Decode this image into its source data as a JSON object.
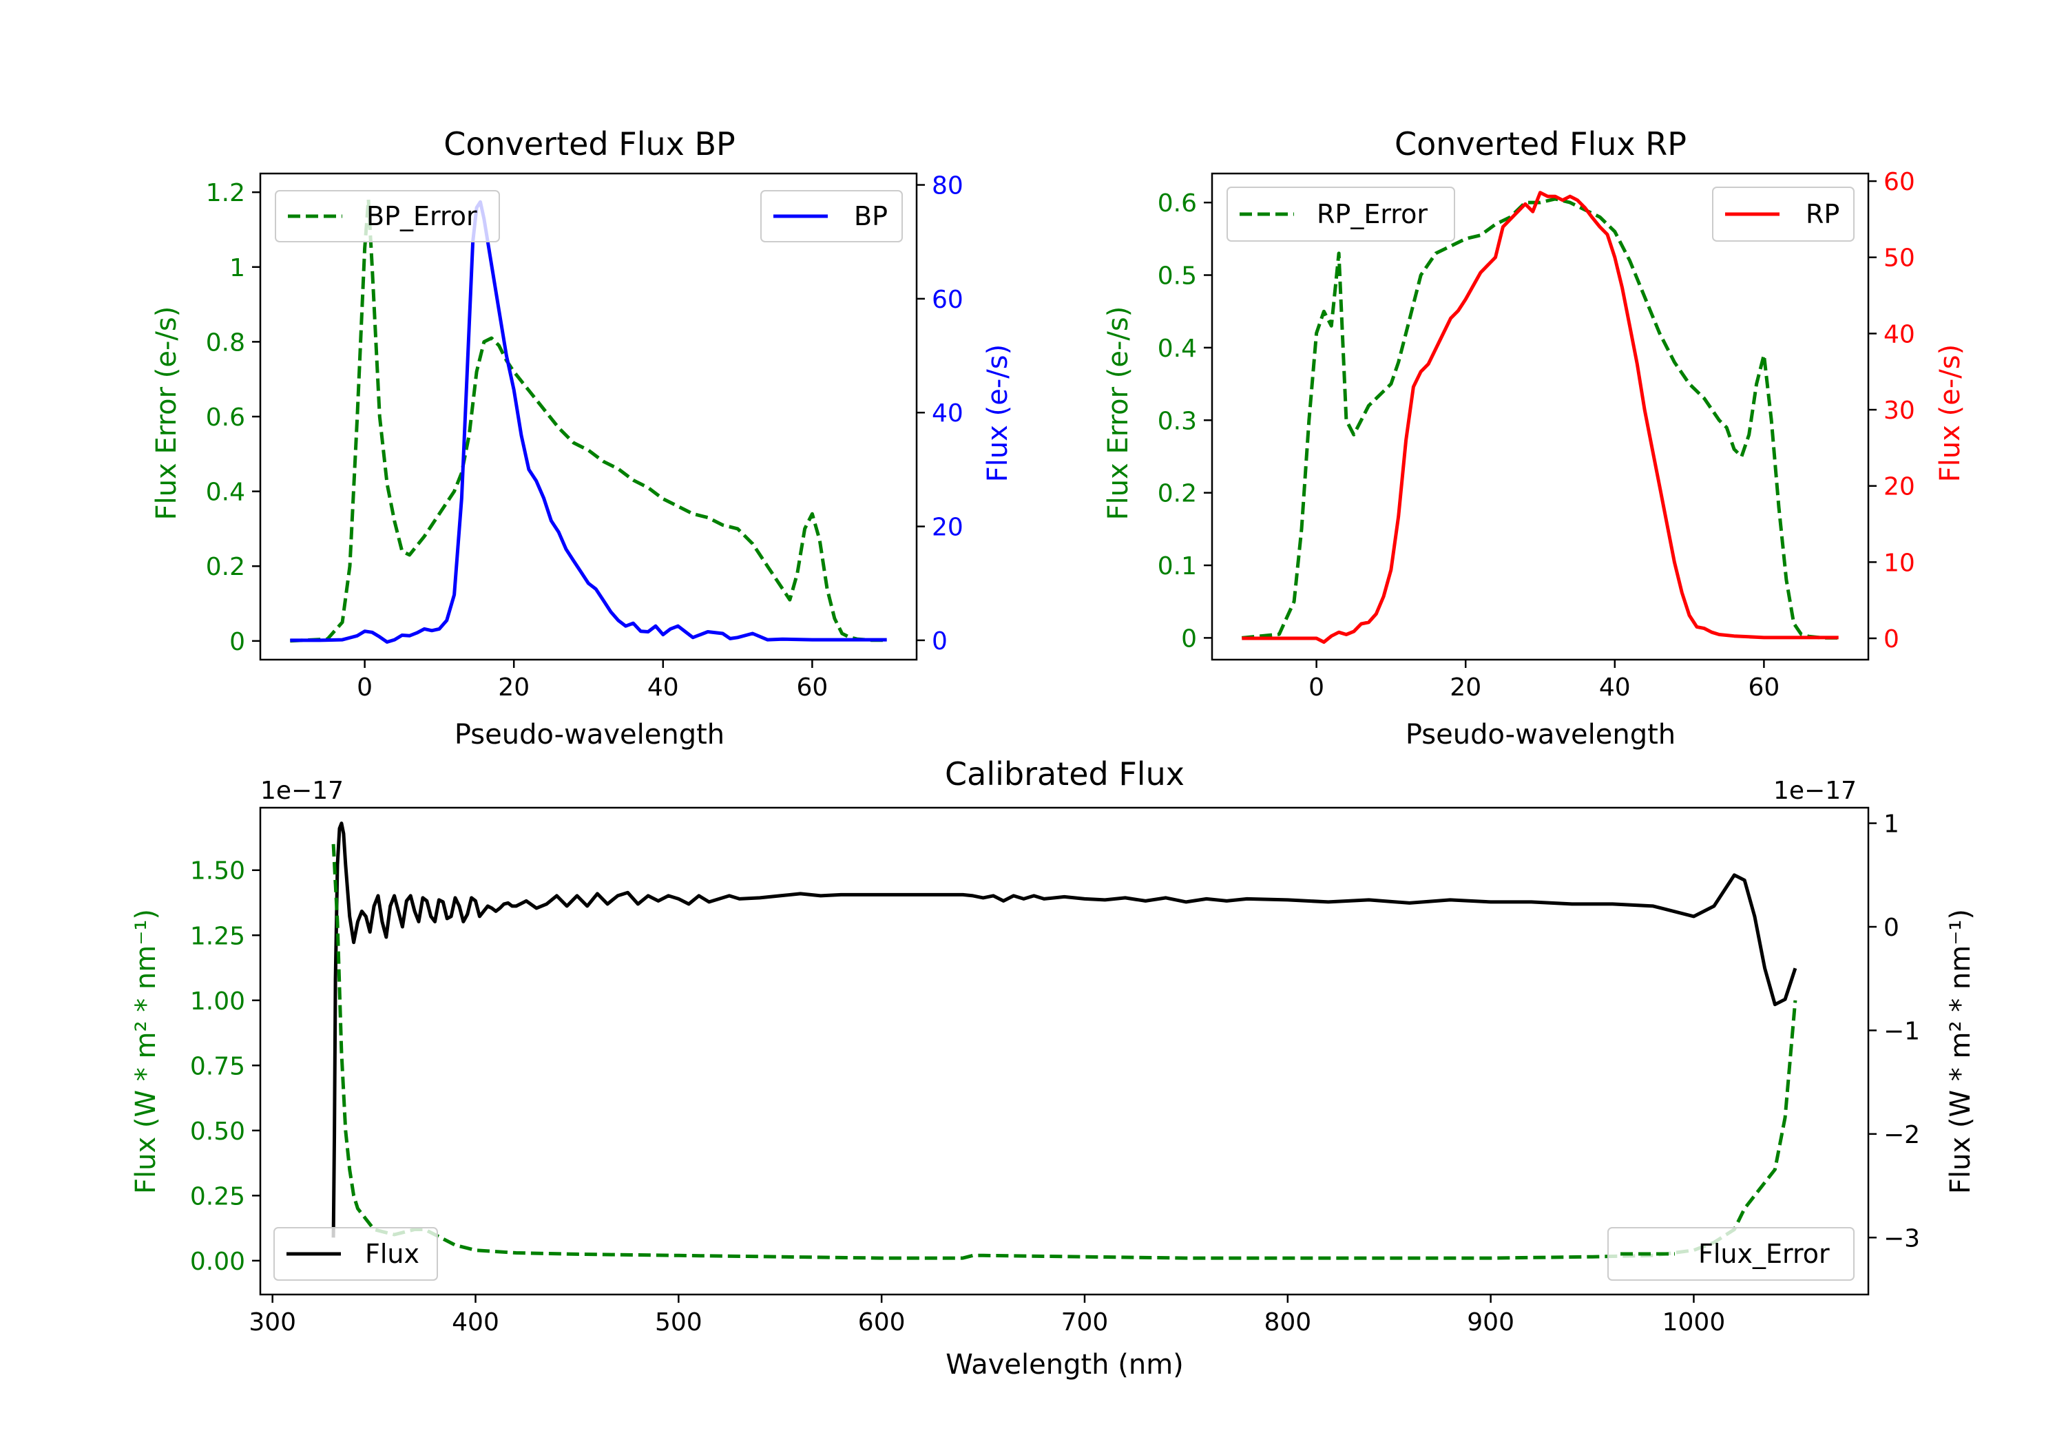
{
  "figure": {
    "title": ""
  },
  "chart_data": [
    {
      "id": "bp",
      "type": "line",
      "title": "Converted Flux BP",
      "xlabel": "Pseudo-wavelength",
      "ylabel_left": "Flux Error (e-/s)",
      "ylabel_right": "Flux (e-/s)",
      "xlim": [
        -14,
        74
      ],
      "ylim_left": [
        -0.05,
        1.25
      ],
      "ylim_right": [
        -3.4,
        82
      ],
      "xticks": [
        0,
        20,
        40,
        60
      ],
      "yticks_left": [
        0.0,
        0.2,
        0.4,
        0.6,
        0.8,
        1.0,
        1.2
      ],
      "yticks_right": [
        0,
        20,
        40,
        60,
        80
      ],
      "left_tick_color": "#008000",
      "right_tick_color": "#0000ff",
      "legend_left": "top-left",
      "legend_right": "top-right",
      "series": [
        {
          "name": "BP_Error",
          "axis": "left",
          "color": "#008000",
          "dash": true,
          "x": [
            -10,
            -5,
            -3,
            -2,
            -1,
            0,
            0.5,
            1,
            2,
            3,
            4,
            5,
            6,
            8,
            10,
            12,
            13,
            14,
            15,
            16,
            17,
            18,
            19,
            20,
            22,
            24,
            26,
            28,
            30,
            32,
            34,
            36,
            38,
            40,
            42,
            44,
            46,
            48,
            50,
            52,
            54,
            56,
            57,
            58,
            59,
            60,
            61,
            62,
            63,
            64,
            65,
            66,
            68,
            70
          ],
          "y": [
            0,
            0.005,
            0.05,
            0.2,
            0.6,
            1.05,
            1.18,
            1.0,
            0.6,
            0.42,
            0.32,
            0.24,
            0.23,
            0.28,
            0.34,
            0.4,
            0.45,
            0.55,
            0.72,
            0.8,
            0.81,
            0.79,
            0.75,
            0.72,
            0.67,
            0.62,
            0.57,
            0.53,
            0.51,
            0.48,
            0.46,
            0.43,
            0.41,
            0.38,
            0.36,
            0.34,
            0.33,
            0.31,
            0.3,
            0.26,
            0.2,
            0.14,
            0.11,
            0.18,
            0.3,
            0.34,
            0.27,
            0.14,
            0.06,
            0.02,
            0.01,
            0.005,
            0.002,
            0.002
          ]
        },
        {
          "name": "BP",
          "axis": "right",
          "color": "#0000ff",
          "dash": false,
          "x": [
            -10,
            -6,
            -3,
            -1,
            0,
            1,
            2,
            3,
            4,
            5,
            6,
            7,
            8,
            9,
            10,
            11,
            12,
            13,
            14,
            14.5,
            15,
            15.5,
            16,
            16.5,
            17,
            18,
            19,
            20,
            21,
            22,
            23,
            24,
            25,
            26,
            27,
            28,
            29,
            30,
            31,
            32,
            33,
            34,
            35,
            36,
            37,
            38,
            39,
            40,
            41,
            42,
            43,
            44,
            46,
            48,
            49,
            50,
            52,
            54,
            56,
            60,
            65,
            70
          ],
          "y": [
            0,
            0,
            0.1,
            0.8,
            1.6,
            1.4,
            0.6,
            -0.3,
            0.1,
            0.9,
            0.8,
            1.3,
            2,
            1.7,
            2,
            3.5,
            8,
            25,
            55,
            70,
            76,
            77,
            74,
            70,
            66,
            58,
            50,
            44,
            36,
            30,
            28,
            25,
            21,
            19,
            16,
            14,
            12,
            10,
            9,
            7,
            5,
            3.5,
            2.5,
            3,
            1.6,
            1.5,
            2.5,
            1,
            2,
            2.5,
            1.5,
            0.5,
            1.5,
            1.2,
            0.3,
            0.5,
            1.2,
            0.1,
            0.2,
            0.1,
            0.1,
            0.1
          ]
        }
      ]
    },
    {
      "id": "rp",
      "type": "line",
      "title": "Converted Flux RP",
      "xlabel": "Pseudo-wavelength",
      "ylabel_left": "Flux Error (e-/s)",
      "ylabel_right": "Flux (e-/s)",
      "xlim": [
        -14,
        74
      ],
      "ylim_left": [
        -0.03,
        0.64
      ],
      "ylim_right": [
        -2.8,
        61
      ],
      "xticks": [
        0,
        20,
        40,
        60
      ],
      "yticks_left": [
        0.0,
        0.1,
        0.2,
        0.3,
        0.4,
        0.5,
        0.6
      ],
      "yticks_right": [
        0,
        10,
        20,
        30,
        40,
        50,
        60
      ],
      "left_tick_color": "#008000",
      "right_tick_color": "#ff0000",
      "legend_left": "top-left",
      "legend_right": "top-right",
      "series": [
        {
          "name": "RP_Error",
          "axis": "left",
          "color": "#008000",
          "dash": true,
          "x": [
            -10,
            -5,
            -3,
            -2,
            -1,
            0,
            1,
            2,
            3,
            4,
            5,
            6,
            7,
            8,
            9,
            10,
            11,
            12,
            14,
            16,
            18,
            20,
            22,
            24,
            26,
            28,
            30,
            32,
            34,
            36,
            38,
            40,
            42,
            44,
            46,
            48,
            50,
            52,
            54,
            55,
            56,
            57,
            58,
            59,
            60,
            61,
            62,
            63,
            64,
            65,
            66,
            68,
            70
          ],
          "y": [
            0,
            0.005,
            0.05,
            0.15,
            0.3,
            0.42,
            0.45,
            0.43,
            0.53,
            0.3,
            0.28,
            0.3,
            0.32,
            0.33,
            0.34,
            0.35,
            0.38,
            0.42,
            0.5,
            0.53,
            0.54,
            0.55,
            0.555,
            0.57,
            0.58,
            0.6,
            0.6,
            0.605,
            0.6,
            0.59,
            0.58,
            0.56,
            0.52,
            0.47,
            0.42,
            0.38,
            0.35,
            0.33,
            0.3,
            0.29,
            0.26,
            0.25,
            0.28,
            0.35,
            0.39,
            0.3,
            0.18,
            0.08,
            0.02,
            0.005,
            0.002,
            0,
            0
          ]
        },
        {
          "name": "RP",
          "axis": "right",
          "color": "#ff0000",
          "dash": false,
          "x": [
            -10,
            -4,
            -2,
            0,
            1,
            2,
            3,
            4,
            5,
            6,
            7,
            8,
            9,
            10,
            11,
            12,
            13,
            14,
            15,
            16,
            17,
            18,
            19,
            20,
            22,
            24,
            25,
            26,
            28,
            29,
            30,
            31,
            32,
            33,
            34,
            35,
            36,
            37,
            38,
            39,
            40,
            41,
            42,
            43,
            44,
            45,
            46,
            47,
            48,
            49,
            50,
            51,
            52,
            53,
            54,
            56,
            58,
            60,
            65,
            70
          ],
          "y": [
            0,
            0,
            0,
            0,
            -0.5,
            0.3,
            0.8,
            0.5,
            0.9,
            1.9,
            2.1,
            3.2,
            5.5,
            9,
            16,
            26,
            33,
            35,
            36,
            38,
            40,
            42,
            43,
            44.5,
            48,
            50,
            54,
            55,
            57,
            56,
            58.5,
            58,
            58,
            57.5,
            58,
            57.5,
            56.5,
            55.2,
            54,
            53,
            50,
            46,
            41,
            36,
            30,
            25,
            20,
            15,
            10,
            6,
            3,
            1.5,
            1.3,
            0.8,
            0.5,
            0.3,
            0.2,
            0.1,
            0.1,
            0.1
          ]
        }
      ]
    },
    {
      "id": "cal",
      "type": "line",
      "title": "Calibrated Flux",
      "xlabel": "Wavelength (nm)",
      "ylabel_left": "Flux (W * m² * nm⁻¹)",
      "ylabel_right": "Flux (W * m² * nm⁻¹)",
      "offset_left": "1e−17",
      "offset_right": "1e−17",
      "xlim": [
        294,
        1086
      ],
      "ylim_left": [
        -0.13,
        1.74
      ],
      "ylim_right": [
        -3.55,
        1.15
      ],
      "xticks": [
        300,
        400,
        500,
        600,
        700,
        800,
        900,
        1000
      ],
      "yticks_left": [
        0.0,
        0.25,
        0.5,
        0.75,
        1.0,
        1.25,
        1.5
      ],
      "yticks_left_labels": [
        "0.00",
        "0.25",
        "0.50",
        "0.75",
        "1.00",
        "1.25",
        "1.50"
      ],
      "yticks_right": [
        -3,
        -2,
        -1,
        0,
        1
      ],
      "yticks_right_labels": [
        "−3",
        "−2",
        "−1",
        "0",
        "1"
      ],
      "left_tick_color": "#008000",
      "right_tick_color": "#000000",
      "legend_left": "bottom-left",
      "legend_right": "bottom-right",
      "series": [
        {
          "name": "Flux",
          "axis": "right",
          "color": "#000000",
          "dash": false,
          "x": [
            330,
            330.5,
            331,
            332,
            333,
            334,
            335,
            336,
            338,
            340,
            342,
            344,
            346,
            348,
            350,
            352,
            354,
            356,
            358,
            360,
            362,
            364,
            366,
            368,
            370,
            372,
            374,
            376,
            378,
            380,
            382,
            384,
            386,
            388,
            390,
            392,
            394,
            396,
            398,
            400,
            402,
            404,
            406,
            408,
            410,
            412,
            414,
            416,
            418,
            420,
            425,
            430,
            435,
            440,
            445,
            450,
            455,
            460,
            465,
            470,
            475,
            480,
            485,
            490,
            495,
            500,
            505,
            510,
            515,
            520,
            525,
            530,
            540,
            550,
            560,
            570,
            580,
            600,
            620,
            640,
            645,
            650,
            655,
            660,
            665,
            670,
            675,
            680,
            690,
            700,
            710,
            720,
            730,
            740,
            750,
            760,
            770,
            780,
            800,
            820,
            840,
            860,
            880,
            900,
            920,
            940,
            960,
            980,
            1000,
            1010,
            1015,
            1020,
            1025,
            1030,
            1035,
            1040,
            1045,
            1050
          ],
          "y": [
            -3.0,
            -2,
            -0.5,
            0.6,
            0.95,
            1.0,
            0.9,
            0.6,
            0.1,
            -0.15,
            0.05,
            0.15,
            0.1,
            -0.05,
            0.2,
            0.3,
            0.05,
            -0.1,
            0.2,
            0.3,
            0.15,
            0.0,
            0.25,
            0.3,
            0.15,
            0.05,
            0.28,
            0.25,
            0.1,
            0.05,
            0.26,
            0.24,
            0.08,
            0.1,
            0.28,
            0.2,
            0.05,
            0.12,
            0.28,
            0.25,
            0.1,
            0.15,
            0.2,
            0.18,
            0.15,
            0.18,
            0.22,
            0.23,
            0.2,
            0.2,
            0.25,
            0.18,
            0.22,
            0.3,
            0.2,
            0.3,
            0.2,
            0.32,
            0.22,
            0.3,
            0.33,
            0.22,
            0.3,
            0.25,
            0.3,
            0.27,
            0.22,
            0.3,
            0.24,
            0.27,
            0.3,
            0.27,
            0.28,
            0.3,
            0.32,
            0.3,
            0.31,
            0.31,
            0.31,
            0.31,
            0.3,
            0.28,
            0.3,
            0.25,
            0.3,
            0.27,
            0.3,
            0.27,
            0.29,
            0.27,
            0.26,
            0.28,
            0.25,
            0.28,
            0.24,
            0.27,
            0.25,
            0.27,
            0.26,
            0.24,
            0.26,
            0.23,
            0.26,
            0.24,
            0.24,
            0.22,
            0.22,
            0.2,
            0.1,
            0.2,
            0.35,
            0.5,
            0.45,
            0.1,
            -0.4,
            -0.75,
            -0.7,
            -0.4
          ]
        },
        {
          "name": "Flux_Error",
          "axis": "left",
          "color": "#008000",
          "dash": true,
          "x": [
            330,
            332,
            334,
            336,
            338,
            340,
            342,
            345,
            350,
            355,
            360,
            365,
            370,
            375,
            380,
            385,
            390,
            395,
            400,
            410,
            420,
            450,
            500,
            550,
            600,
            640,
            645,
            650,
            700,
            750,
            800,
            850,
            900,
            950,
            980,
            1000,
            1010,
            1020,
            1025,
            1030,
            1035,
            1040,
            1045,
            1050
          ],
          "y": [
            1.6,
            1.3,
            0.8,
            0.5,
            0.35,
            0.25,
            0.2,
            0.17,
            0.12,
            0.11,
            0.1,
            0.11,
            0.12,
            0.12,
            0.1,
            0.08,
            0.06,
            0.05,
            0.04,
            0.035,
            0.03,
            0.025,
            0.02,
            0.015,
            0.01,
            0.01,
            0.02,
            0.02,
            0.015,
            0.01,
            0.01,
            0.01,
            0.01,
            0.015,
            0.02,
            0.04,
            0.07,
            0.12,
            0.2,
            0.25,
            0.3,
            0.35,
            0.55,
            1.0
          ]
        }
      ]
    }
  ]
}
